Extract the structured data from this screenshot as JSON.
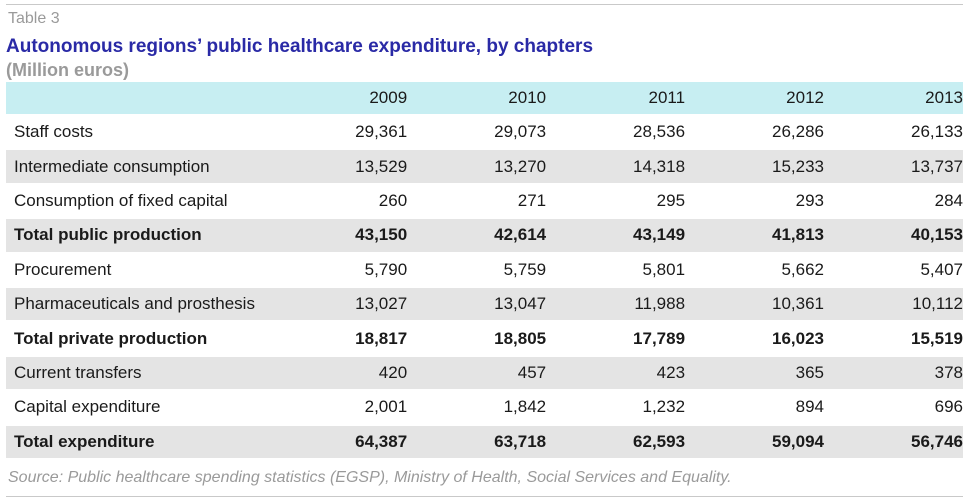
{
  "table_label": "Table 3",
  "title": "Autonomous regions’ public healthcare expenditure, by chapters",
  "subtitle": "(Million euros)",
  "columns": [
    "2009",
    "2010",
    "2011",
    "2012",
    "2013"
  ],
  "rows": [
    {
      "label": "Staff costs",
      "values": [
        "29,361",
        "29,073",
        "28,536",
        "26,286",
        "26,133"
      ],
      "bold": false,
      "shaded": false
    },
    {
      "label": "Intermediate consumption",
      "values": [
        "13,529",
        "13,270",
        "14,318",
        "15,233",
        "13,737"
      ],
      "bold": false,
      "shaded": true
    },
    {
      "label": "Consumption of fixed capital",
      "values": [
        "260",
        "271",
        "295",
        "293",
        "284"
      ],
      "bold": false,
      "shaded": false
    },
    {
      "label": "Total public production",
      "values": [
        "43,150",
        "42,614",
        "43,149",
        "41,813",
        "40,153"
      ],
      "bold": true,
      "shaded": true
    },
    {
      "label": "Procurement",
      "values": [
        "5,790",
        "5,759",
        "5,801",
        "5,662",
        "5,407"
      ],
      "bold": false,
      "shaded": false
    },
    {
      "label": "Pharmaceuticals and prosthesis",
      "values": [
        "13,027",
        "13,047",
        "11,988",
        "10,361",
        "10,112"
      ],
      "bold": false,
      "shaded": true
    },
    {
      "label": "Total private production",
      "values": [
        "18,817",
        "18,805",
        "17,789",
        "16,023",
        "15,519"
      ],
      "bold": true,
      "shaded": false
    },
    {
      "label": "Current transfers",
      "values": [
        "420",
        "457",
        "423",
        "365",
        "378"
      ],
      "bold": false,
      "shaded": true
    },
    {
      "label": "Capital expenditure",
      "values": [
        "2,001",
        "1,842",
        "1,232",
        "894",
        "696"
      ],
      "bold": false,
      "shaded": false
    },
    {
      "label": "Total expenditure",
      "values": [
        "64,387",
        "63,718",
        "62,593",
        "59,094",
        "56,746"
      ],
      "bold": true,
      "shaded": true
    }
  ],
  "source": "Source: Public healthcare spending statistics (EGSP), Ministry of Health, Social Services and Equality.",
  "colors": {
    "title": "#2a2aa6",
    "header_bg": "#c7eef2",
    "shaded_row": "#e4e4e4",
    "muted_text": "#9a9a9a"
  }
}
